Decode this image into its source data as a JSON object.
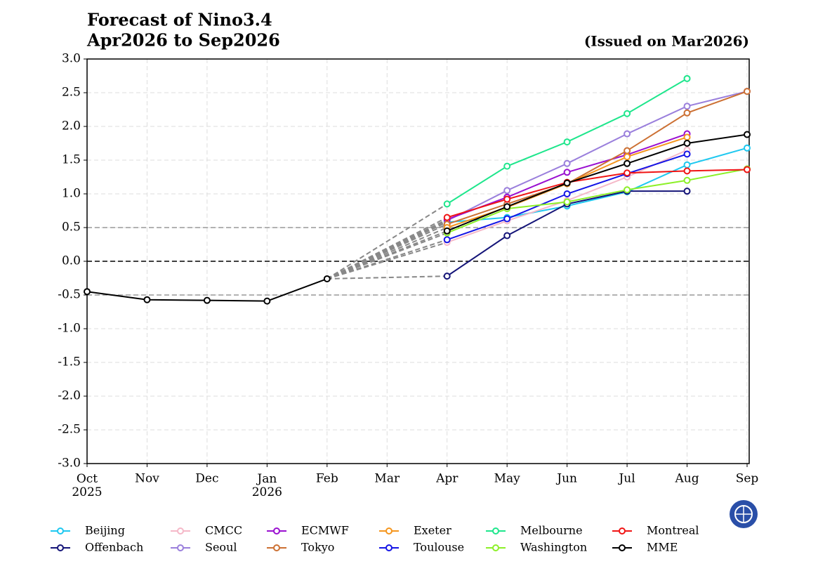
{
  "chart_data": {
    "type": "line",
    "title": "Forecast of Nino3.4",
    "subtitle": "Apr2026 to Sep2026",
    "annotation": "(Issued on Mar2026)",
    "categories": [
      "Oct\n2025",
      "Nov",
      "Dec",
      "Jan\n2026",
      "Feb",
      "Mar",
      "Apr",
      "May",
      "Jun",
      "Jul",
      "Aug",
      "Sep"
    ],
    "ylim": [
      -3.0,
      3.0
    ],
    "yticks": [
      {
        "value": -3,
        "label": "-3.0"
      },
      {
        "value": -2.5,
        "label": "-2.5"
      },
      {
        "value": -2,
        "label": "-2.0"
      },
      {
        "value": -1.5,
        "label": "-1.5"
      },
      {
        "value": -1,
        "label": "-1.0"
      },
      {
        "value": -0.5,
        "label": "-0.5"
      },
      {
        "value": 0,
        "label": "0.0"
      },
      {
        "value": 0.5,
        "label": "0.5"
      },
      {
        "value": 1,
        "label": "1.0"
      },
      {
        "value": 1.5,
        "label": "1.5"
      },
      {
        "value": 2,
        "label": "2.0"
      },
      {
        "value": 2.5,
        "label": "2.5"
      },
      {
        "value": 3,
        "label": "3.0"
      }
    ],
    "grid": true,
    "hlines": [
      {
        "value": 0.5,
        "color": "#999999"
      },
      {
        "value": -0.5,
        "color": "#999999"
      },
      {
        "value": 0,
        "color": "#000000"
      }
    ],
    "observed": {
      "color": "#000000",
      "values": [
        -0.45,
        -0.57,
        -0.58,
        -0.59,
        -0.26,
        null,
        null,
        null,
        null,
        null,
        null,
        null
      ]
    },
    "legend": "bottom",
    "series": [
      {
        "name": "Beijing",
        "color": "#1ec8f0",
        "values": [
          null,
          null,
          null,
          null,
          null,
          null,
          0.58,
          0.65,
          0.82,
          1.03,
          1.43,
          1.68
        ]
      },
      {
        "name": "Offenbach",
        "color": "#141478",
        "values": [
          null,
          null,
          null,
          null,
          null,
          null,
          -0.22,
          0.38,
          0.85,
          1.04,
          1.04,
          null
        ]
      },
      {
        "name": "CMCC",
        "color": "#f5b8c8",
        "values": [
          null,
          null,
          null,
          null,
          null,
          null,
          0.28,
          0.6,
          0.9,
          1.25,
          1.65,
          null
        ]
      },
      {
        "name": "Seoul",
        "color": "#9a7fdc",
        "values": [
          null,
          null,
          null,
          null,
          null,
          null,
          0.6,
          1.05,
          1.45,
          1.89,
          2.3,
          2.52
        ]
      },
      {
        "name": "ECMWF",
        "color": "#9a10d0",
        "values": [
          null,
          null,
          null,
          null,
          null,
          null,
          0.62,
          0.95,
          1.32,
          1.58,
          1.89,
          null
        ]
      },
      {
        "name": "Tokyo",
        "color": "#cc7033",
        "values": [
          null,
          null,
          null,
          null,
          null,
          null,
          0.55,
          0.85,
          1.15,
          1.64,
          2.2,
          2.52
        ]
      },
      {
        "name": "Exeter",
        "color": "#f5961e",
        "values": [
          null,
          null,
          null,
          null,
          null,
          null,
          0.5,
          0.8,
          1.15,
          1.55,
          1.84,
          null
        ]
      },
      {
        "name": "Toulouse",
        "color": "#1414e6",
        "values": [
          null,
          null,
          null,
          null,
          null,
          null,
          0.32,
          0.63,
          1.0,
          1.3,
          1.59,
          null
        ]
      },
      {
        "name": "Melbourne",
        "color": "#1ee68c",
        "values": [
          null,
          null,
          null,
          null,
          null,
          null,
          0.85,
          1.41,
          1.77,
          2.19,
          2.71,
          null
        ]
      },
      {
        "name": "Washington",
        "color": "#8cf028",
        "values": [
          null,
          null,
          null,
          null,
          null,
          null,
          0.42,
          0.78,
          0.88,
          1.06,
          1.2,
          1.37
        ]
      },
      {
        "name": "Montreal",
        "color": "#f01414",
        "values": [
          null,
          null,
          null,
          null,
          null,
          null,
          0.65,
          0.92,
          1.17,
          1.31,
          1.34,
          1.36
        ]
      },
      {
        "name": "MME",
        "color": "#000000",
        "values": [
          null,
          null,
          null,
          null,
          null,
          null,
          0.45,
          0.81,
          1.16,
          1.45,
          1.75,
          1.88
        ]
      }
    ]
  }
}
